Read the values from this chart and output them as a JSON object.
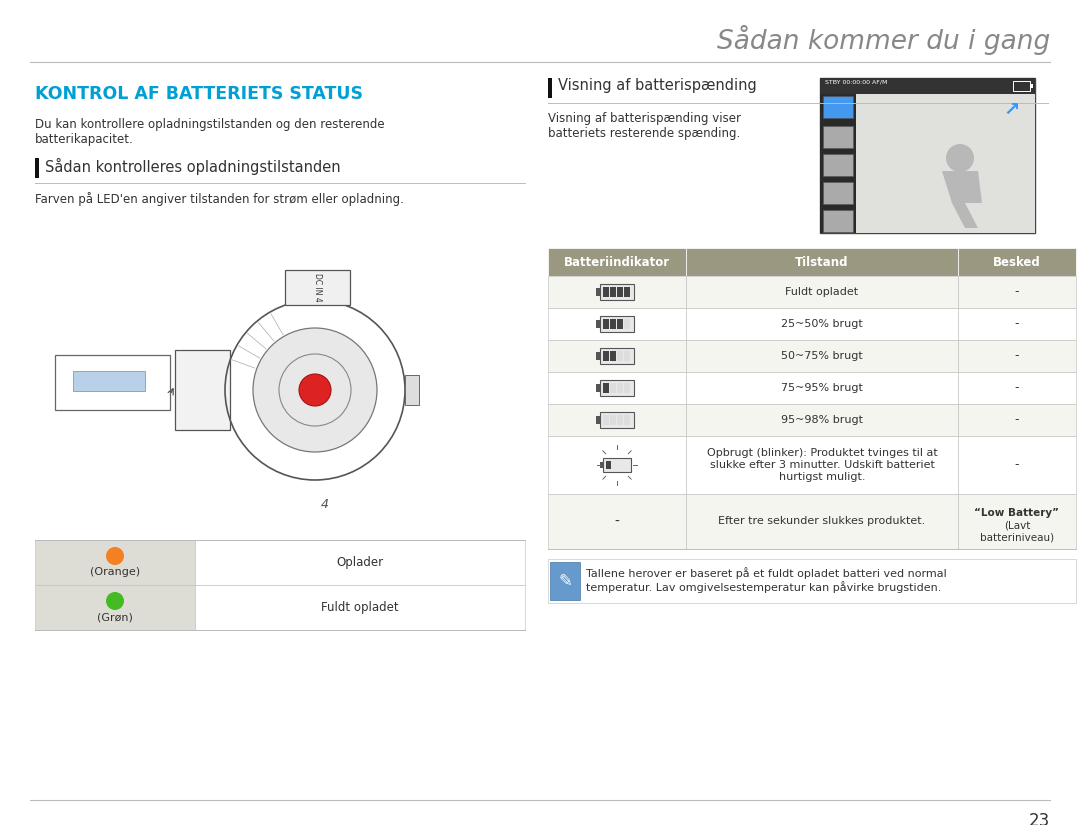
{
  "page_title": "Sådan kommer du i gang",
  "section_title": "KONTROL AF BATTERIETS STATUS",
  "section_title_color": "#009FD4",
  "intro_text": "Du kan kontrollere opladningstilstanden og den resterende\nbatterikapacitet.",
  "subsection1_title": "Sådan kontrolleres opladningstilstanden",
  "subsection1_text": "Farven på LED'en angiver tilstanden for strøm eller opladning.",
  "subsection2_title": "Visning af batterispænding",
  "subsection2_text": "Visning af batterispænding viser\nbatteriets resterende spænding.",
  "led_rows": [
    {
      "color": "#F48024",
      "label": "(Orange)",
      "desc": "Oplader"
    },
    {
      "color": "#44BB22",
      "label": "(Grøn)",
      "desc": "Fuldt opladet"
    }
  ],
  "battery_table_headers": [
    "Batteriindikator",
    "Tilstand",
    "Besked"
  ],
  "battery_table_header_bg": "#9A9880",
  "battery_table_header_color": "#FFFFFF",
  "battery_rows": [
    {
      "tilstand": "Fuldt opladet",
      "besked": "-",
      "bars": 4
    },
    {
      "tilstand": "25~50% brugt",
      "besked": "-",
      "bars": 3
    },
    {
      "tilstand": "50~75% brugt",
      "besked": "-",
      "bars": 2
    },
    {
      "tilstand": "75~95% brugt",
      "besked": "-",
      "bars": 1
    },
    {
      "tilstand": "95~98% brugt",
      "besked": "-",
      "bars": 0
    },
    {
      "tilstand": "Opbrugt (blinker): Produktet tvinges til at\nslukke efter 3 minutter. Udskift batteriet\nhurtigst muligt.",
      "besked": "-",
      "bars": -1
    },
    {
      "tilstand": "Efter tre sekunder slukkes produktet.",
      "besked": "“Low Battery”\n(Lavt\nbatteriniveau)",
      "bars": -2
    }
  ],
  "note_text": "Tallene herover er baseret på et fuldt opladet batteri ved normal\ntemperatur. Lav omgivelsestemperatur kan påvirke brugstiden.",
  "page_number": "23",
  "bg_color": "#FFFFFF",
  "text_color": "#333333",
  "line_color": "#BBBBBB",
  "header_line_color": "#999999",
  "table_row_bg": "#F5F5F0",
  "led_col1_bg": "#DDDDD5"
}
